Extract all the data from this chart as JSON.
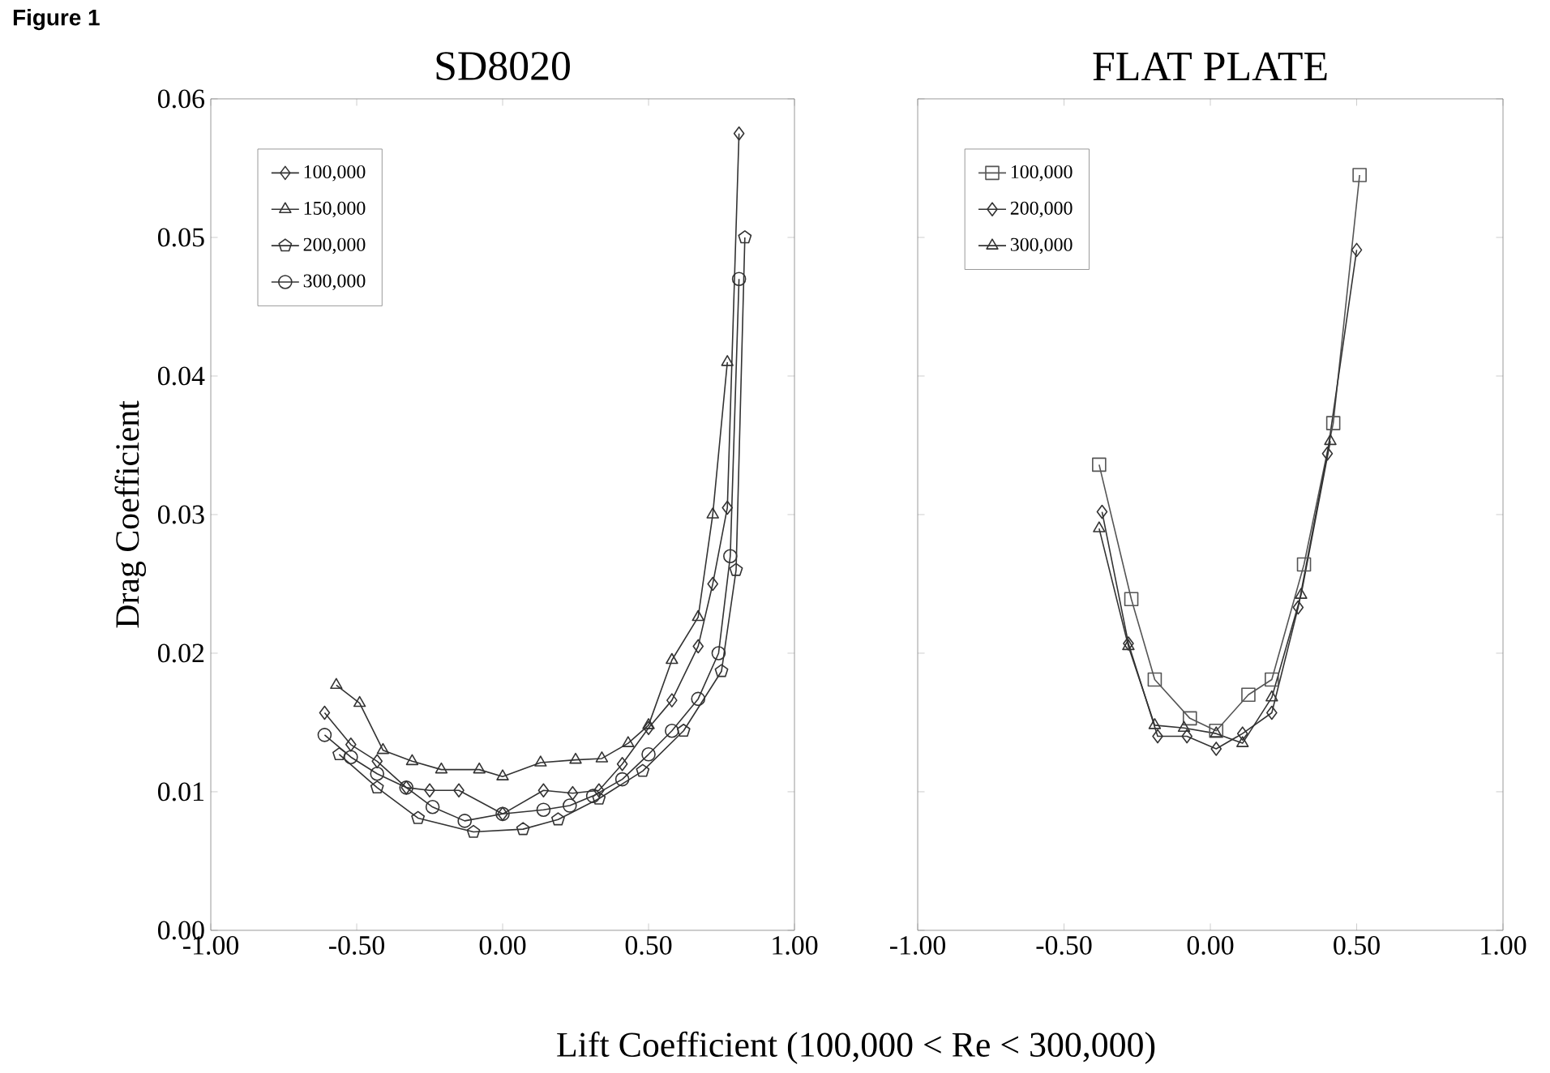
{
  "chart_data": [
    {
      "type": "line",
      "title": "SD8020",
      "xlabel": "Lift Coefficient (100,000 < Re < 300,000)",
      "ylabel": "Drag Coefficient",
      "annotations": [
        "Figure 1"
      ],
      "legend": "top left",
      "line_style": "solid",
      "xlim": [
        -1,
        1
      ],
      "xticks": [
        {
          "value": -1,
          "label": "-1.00"
        },
        {
          "value": -0.5,
          "label": "-0.50"
        },
        {
          "value": 0,
          "label": "0.00"
        },
        {
          "value": 0.5,
          "label": "0.50"
        },
        {
          "value": 1,
          "label": "1.00"
        }
      ],
      "ylim": [
        0,
        0.06
      ],
      "yticks": [
        {
          "value": 0,
          "label": "0.00"
        },
        {
          "value": 0.01,
          "label": "0.01"
        },
        {
          "value": 0.02,
          "label": "0.02"
        },
        {
          "value": 0.03,
          "label": "0.03"
        },
        {
          "value": 0.04,
          "label": "0.04"
        },
        {
          "value": 0.05,
          "label": "0.05"
        },
        {
          "value": 0.06,
          "label": "0.06"
        }
      ],
      "series": [
        {
          "name": "100,000",
          "color": "#333333",
          "marker": "diamond",
          "x": [
            -0.61,
            -0.52,
            -0.43,
            -0.33,
            -0.25,
            -0.15,
            0.0,
            0.14,
            0.24,
            0.33,
            0.41,
            0.5,
            0.58,
            0.67,
            0.72,
            0.77,
            0.81
          ],
          "values": [
            0.0157,
            0.0134,
            0.0122,
            0.0103,
            0.0101,
            0.0101,
            0.0084,
            0.0101,
            0.0099,
            0.0101,
            0.012,
            0.0146,
            0.0166,
            0.0205,
            0.025,
            0.0305,
            0.0575
          ]
        },
        {
          "name": "150,000",
          "color": "#333333",
          "marker": "triangle",
          "x": [
            -0.57,
            -0.49,
            -0.41,
            -0.31,
            -0.21,
            -0.08,
            0.0,
            0.13,
            0.25,
            0.34,
            0.43,
            0.5,
            0.58,
            0.67,
            0.72,
            0.77
          ],
          "values": [
            0.0177,
            0.0164,
            0.013,
            0.0122,
            0.0116,
            0.0116,
            0.0111,
            0.0121,
            0.0123,
            0.0124,
            0.0135,
            0.0148,
            0.0195,
            0.0226,
            0.03,
            0.041
          ]
        },
        {
          "name": "200,000",
          "color": "#333333",
          "marker": "star",
          "x": [
            -0.56,
            -0.43,
            -0.29,
            -0.1,
            0.07,
            0.19,
            0.33,
            0.48,
            0.62,
            0.75,
            0.8,
            0.83
          ],
          "values": [
            0.0127,
            0.0103,
            0.0081,
            0.0071,
            0.0073,
            0.008,
            0.0095,
            0.0115,
            0.0144,
            0.0187,
            0.026,
            0.05
          ]
        },
        {
          "name": "300,000",
          "color": "#333333",
          "marker": "circle",
          "x": [
            -0.61,
            -0.52,
            -0.43,
            -0.33,
            -0.24,
            -0.13,
            0.0,
            0.14,
            0.23,
            0.31,
            0.41,
            0.5,
            0.58,
            0.67,
            0.74,
            0.78,
            0.81
          ],
          "values": [
            0.0141,
            0.0125,
            0.0113,
            0.0103,
            0.0089,
            0.0079,
            0.0084,
            0.0087,
            0.009,
            0.0097,
            0.0109,
            0.0127,
            0.0144,
            0.0167,
            0.02,
            0.027,
            0.047
          ]
        }
      ]
    },
    {
      "type": "line",
      "title": "FLAT PLATE",
      "legend": "top left",
      "line_style": "solid",
      "tick_labels": "x",
      "xlim": [
        -1,
        1
      ],
      "xticks": [
        {
          "value": -1,
          "label": "-1.00"
        },
        {
          "value": -0.5,
          "label": "-0.50"
        },
        {
          "value": 0,
          "label": "0.00"
        },
        {
          "value": 0.5,
          "label": "0.50"
        },
        {
          "value": 1,
          "label": "1.00"
        }
      ],
      "ylim": [
        0,
        0.06
      ],
      "yticks": [
        0,
        0.01,
        0.02,
        0.03,
        0.04,
        0.05,
        0.06
      ],
      "series": [
        {
          "name": "100,000",
          "color": "#555555",
          "marker": "square",
          "x": [
            -0.38,
            -0.27,
            -0.19,
            -0.07,
            0.02,
            0.13,
            0.21,
            0.32,
            0.42,
            0.51
          ],
          "values": [
            0.0336,
            0.0239,
            0.0181,
            0.0153,
            0.0144,
            0.017,
            0.0181,
            0.0264,
            0.0366,
            0.0545
          ]
        },
        {
          "name": "200,000",
          "color": "#333333",
          "marker": "diamond",
          "x": [
            -0.37,
            -0.28,
            -0.18,
            -0.08,
            0.02,
            0.11,
            0.21,
            0.3,
            0.4,
            0.5
          ],
          "values": [
            0.0302,
            0.0207,
            0.014,
            0.014,
            0.0131,
            0.0142,
            0.0157,
            0.0233,
            0.0344,
            0.0491
          ]
        },
        {
          "name": "300,000",
          "color": "#333333",
          "marker": "triangle",
          "x": [
            -0.38,
            -0.28,
            -0.19,
            -0.09,
            0.02,
            0.11,
            0.21,
            0.31,
            0.41
          ],
          "values": [
            0.029,
            0.0205,
            0.0148,
            0.0146,
            0.0142,
            0.0135,
            0.0168,
            0.0242,
            0.0353
          ]
        }
      ]
    }
  ]
}
